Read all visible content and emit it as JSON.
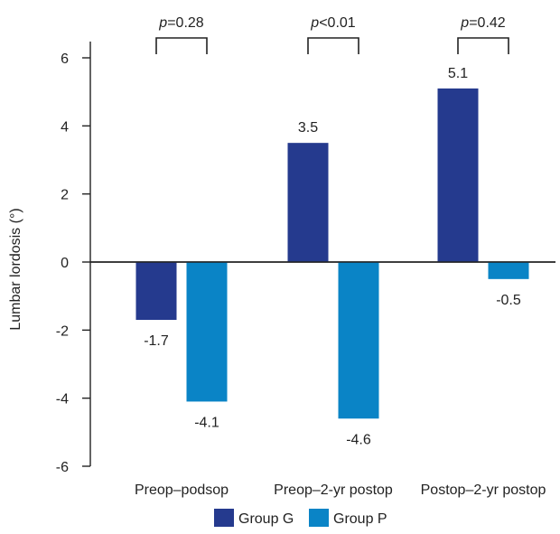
{
  "chart_data": {
    "type": "bar",
    "title": "",
    "xlabel": "",
    "ylabel": "Lumbar lordosis (°)",
    "ylim": [
      -6,
      6
    ],
    "yticks": [
      6,
      4,
      2,
      0,
      -2,
      -4,
      -6
    ],
    "ytick_labels": [
      "6",
      "4",
      "2",
      "0",
      "-2",
      "-4",
      "-6"
    ],
    "categories": [
      "Preop–podsop",
      "Preop–2-yr postop",
      "Postop–2-yr postop"
    ],
    "series": [
      {
        "name": "Group G",
        "color": "#253a8e",
        "values": [
          -1.7,
          3.5,
          5.1
        ],
        "labels": [
          "-1.7",
          "3.5",
          "5.1"
        ]
      },
      {
        "name": "Group P",
        "color": "#0a84c6",
        "values": [
          -4.1,
          -4.6,
          -0.5
        ],
        "labels": [
          "-4.1",
          "-4.6",
          "-0.5"
        ]
      }
    ],
    "comparisons": [
      {
        "prefix": "p",
        "text": "=0.28"
      },
      {
        "prefix": "p",
        "text": "<0.01"
      },
      {
        "prefix": "p",
        "text": "=0.42"
      }
    ],
    "legend_position": "bottom",
    "grid": false
  }
}
